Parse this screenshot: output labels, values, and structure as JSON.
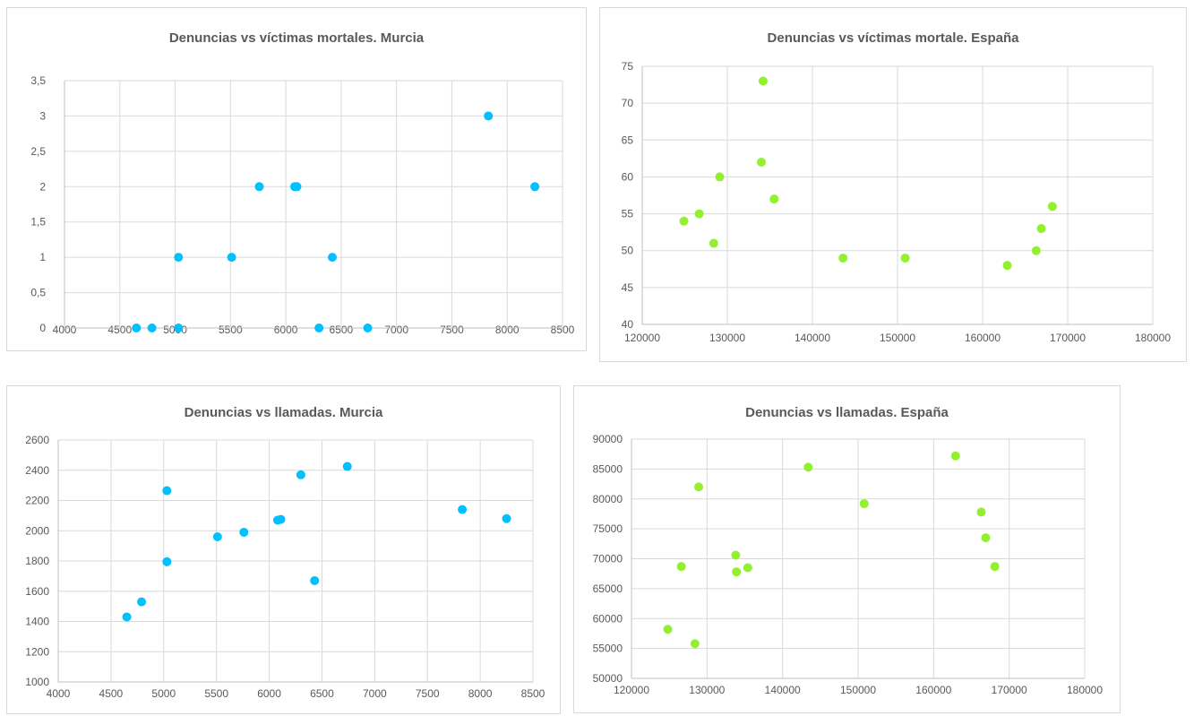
{
  "chart_data": [
    {
      "type": "scatter",
      "title": "Denuncias vs víctimas mortales. Murcia",
      "xlim": [
        4000,
        8500
      ],
      "xticks": [
        4000,
        4500,
        5000,
        5500,
        6000,
        6500,
        7000,
        7500,
        8000,
        8500
      ],
      "xtick_labels": [
        "4000",
        "4500",
        "5000",
        "5500",
        "6000",
        "6500",
        "7000",
        "7500",
        "8000",
        "8500"
      ],
      "ylim": [
        0,
        3.5
      ],
      "yticks": [
        0,
        0.5,
        1,
        1.5,
        2,
        2.5,
        3,
        3.5
      ],
      "ytick_labels": [
        "0",
        "0,5",
        "1",
        "1,5",
        "2",
        "2,5",
        "3",
        "3,5"
      ],
      "grid": true,
      "color": "#00c0ff",
      "x": [
        4650,
        4790,
        5030,
        5030,
        5510,
        5760,
        6080,
        6100,
        6300,
        6420,
        6740,
        7830,
        8250
      ],
      "y": [
        0,
        0,
        0,
        1,
        1,
        2,
        2,
        2,
        0,
        1,
        0,
        3,
        2
      ]
    },
    {
      "type": "scatter",
      "title": "Denuncias vs víctimas mortale. España",
      "xlim": [
        120000,
        180000
      ],
      "xticks": [
        120000,
        130000,
        140000,
        150000,
        160000,
        170000,
        180000
      ],
      "xtick_labels": [
        "120000",
        "130000",
        "140000",
        "150000",
        "160000",
        "170000",
        "180000"
      ],
      "ylim": [
        40,
        75
      ],
      "yticks": [
        40,
        45,
        50,
        55,
        60,
        65,
        70,
        75
      ],
      "ytick_labels": [
        "40",
        "45",
        "50",
        "55",
        "60",
        "65",
        "70",
        "75"
      ],
      "grid": true,
      "color": "#92f030",
      "x": [
        124900,
        126700,
        128400,
        129100,
        134000,
        134200,
        135500,
        143600,
        150900,
        162900,
        166300,
        166900,
        168200
      ],
      "y": [
        54,
        55,
        51,
        60,
        62,
        73,
        57,
        49,
        49,
        48,
        50,
        53,
        56
      ]
    },
    {
      "type": "scatter",
      "title": "Denuncias vs llamadas. Murcia",
      "xlim": [
        4000,
        8500
      ],
      "xticks": [
        4000,
        4500,
        5000,
        5500,
        6000,
        6500,
        7000,
        7500,
        8000,
        8500
      ],
      "xtick_labels": [
        "4000",
        "4500",
        "5000",
        "5500",
        "6000",
        "6500",
        "7000",
        "7500",
        "8000",
        "8500"
      ],
      "ylim": [
        1000,
        2600
      ],
      "yticks": [
        1000,
        1200,
        1400,
        1600,
        1800,
        2000,
        2200,
        2400,
        2600
      ],
      "ytick_labels": [
        "1000",
        "1200",
        "1400",
        "1600",
        "1800",
        "2000",
        "2200",
        "2400",
        "2600"
      ],
      "grid": true,
      "color": "#00c0ff",
      "x": [
        4650,
        4790,
        5030,
        5030,
        5510,
        5760,
        6080,
        6110,
        6300,
        6430,
        6740,
        7830,
        8250
      ],
      "y": [
        1430,
        1530,
        1795,
        2265,
        1960,
        1990,
        2070,
        2075,
        2370,
        1670,
        2425,
        2140,
        2080
      ]
    },
    {
      "type": "scatter",
      "title": "Denuncias vs llamadas. España",
      "xlim": [
        120000,
        180000
      ],
      "xticks": [
        120000,
        130000,
        140000,
        150000,
        160000,
        170000,
        180000
      ],
      "xtick_labels": [
        "120000",
        "130000",
        "140000",
        "150000",
        "160000",
        "170000",
        "180000"
      ],
      "ylim": [
        50000,
        90000
      ],
      "yticks": [
        50000,
        55000,
        60000,
        65000,
        70000,
        75000,
        80000,
        85000,
        90000
      ],
      "ytick_labels": [
        "50000",
        "55000",
        "60000",
        "65000",
        "70000",
        "75000",
        "80000",
        "85000",
        "90000"
      ],
      "grid": true,
      "color": "#92f030",
      "x": [
        124800,
        126600,
        128400,
        128900,
        133800,
        133900,
        135400,
        143400,
        150800,
        162900,
        166300,
        166900,
        168100
      ],
      "y": [
        58200,
        68700,
        55800,
        82000,
        70600,
        67800,
        68500,
        85300,
        79200,
        87200,
        77800,
        73500,
        68700
      ]
    }
  ]
}
